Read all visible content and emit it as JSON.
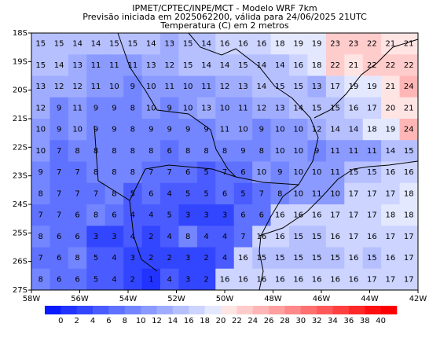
{
  "header": {
    "lines": [
      "IPMET/CPTEC/INPE/MCT - Modelo WRF 7km",
      "Previsão iniciada em 2025062200, válida para 24/06/2025 21UTC",
      "Temperatura (C) em 2 metros"
    ]
  },
  "map": {
    "lon_range": [
      -58,
      -42
    ],
    "lat_range": [
      -18,
      -27
    ],
    "lon_ticks": [
      {
        "value": -58,
        "label": "58W"
      },
      {
        "value": -56,
        "label": "56W"
      },
      {
        "value": -54,
        "label": "54W"
      },
      {
        "value": -52,
        "label": "52W"
      },
      {
        "value": -50,
        "label": "50W"
      },
      {
        "value": -48,
        "label": "48W"
      },
      {
        "value": -46,
        "label": "46W"
      },
      {
        "value": -44,
        "label": "44W"
      },
      {
        "value": -42,
        "label": "42W"
      }
    ],
    "lat_ticks": [
      {
        "value": -18,
        "label": "18S"
      },
      {
        "value": -19,
        "label": "19S"
      },
      {
        "value": -20,
        "label": "20S"
      },
      {
        "value": -21,
        "label": "21S"
      },
      {
        "value": -22,
        "label": "22S"
      },
      {
        "value": -23,
        "label": "23S"
      },
      {
        "value": -24,
        "label": "24S"
      },
      {
        "value": -25,
        "label": "25S"
      },
      {
        "value": -26,
        "label": "26S"
      },
      {
        "value": -27,
        "label": "27S"
      }
    ],
    "values": [
      [
        15,
        15,
        14,
        14,
        15,
        15,
        14,
        13,
        15,
        14,
        16,
        16,
        16,
        18,
        19,
        19,
        23,
        23,
        22,
        21,
        21
      ],
      [
        15,
        14,
        13,
        11,
        11,
        11,
        13,
        12,
        15,
        14,
        14,
        15,
        14,
        14,
        16,
        18,
        22,
        21,
        22,
        22,
        22
      ],
      [
        13,
        12,
        12,
        11,
        10,
        9,
        10,
        11,
        10,
        11,
        12,
        13,
        14,
        15,
        15,
        13,
        17,
        19,
        19,
        21,
        24
      ],
      [
        12,
        9,
        11,
        9,
        9,
        8,
        10,
        9,
        10,
        13,
        10,
        11,
        12,
        13,
        14,
        15,
        15,
        16,
        17,
        20,
        21
      ],
      [
        10,
        9,
        10,
        9,
        9,
        8,
        9,
        9,
        9,
        9,
        11,
        10,
        9,
        10,
        10,
        12,
        14,
        14,
        18,
        19,
        24
      ],
      [
        10,
        7,
        8,
        8,
        8,
        8,
        8,
        6,
        8,
        8,
        8,
        9,
        8,
        10,
        10,
        9,
        11,
        11,
        11,
        14,
        15
      ],
      [
        9,
        7,
        7,
        8,
        8,
        8,
        7,
        7,
        6,
        5,
        7,
        6,
        10,
        9,
        10,
        10,
        11,
        15,
        15,
        16,
        16
      ],
      [
        8,
        7,
        7,
        7,
        8,
        5,
        6,
        4,
        5,
        5,
        6,
        5,
        7,
        8,
        10,
        11,
        10,
        17,
        17,
        17,
        18
      ],
      [
        7,
        7,
        6,
        8,
        6,
        4,
        4,
        5,
        3,
        3,
        3,
        6,
        6,
        16,
        16,
        16,
        17,
        17,
        17,
        18,
        18
      ],
      [
        8,
        6,
        6,
        3,
        3,
        4,
        2,
        4,
        8,
        4,
        4,
        7,
        16,
        16,
        15,
        15,
        16,
        17,
        16,
        17,
        17
      ],
      [
        7,
        6,
        8,
        5,
        4,
        3,
        2,
        2,
        3,
        2,
        4,
        16,
        15,
        15,
        15,
        15,
        15,
        16,
        15,
        16,
        17
      ],
      [
        8,
        6,
        6,
        5,
        4,
        2,
        1,
        4,
        3,
        2,
        16,
        16,
        16,
        16,
        16,
        16,
        16,
        16,
        17,
        17,
        17
      ]
    ]
  },
  "colorbar": {
    "ticks": [
      0,
      2,
      4,
      6,
      8,
      10,
      12,
      14,
      16,
      18,
      20,
      22,
      24,
      26,
      28,
      30,
      32,
      34,
      36,
      38,
      40
    ],
    "colors": [
      "#0a1aff",
      "#2233ff",
      "#3346ff",
      "#4a5cff",
      "#5f72ff",
      "#7486ff",
      "#8a9aff",
      "#a0adff",
      "#b6c0ff",
      "#ccd4ff",
      "#e4e8ff",
      "#ffe4e4",
      "#ffcccc",
      "#ffb6b6",
      "#ff9f9f",
      "#ff8888",
      "#ff7070",
      "#ff5858",
      "#ff4040",
      "#ff2828",
      "#ff1010",
      "#ff0000"
    ]
  }
}
